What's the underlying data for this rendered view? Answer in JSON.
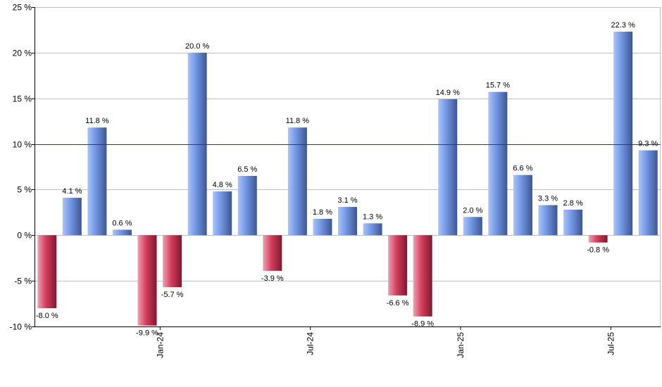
{
  "chart_data": {
    "type": "bar",
    "title": "",
    "xlabel": "",
    "ylabel": "",
    "ylim": [
      -10,
      25
    ],
    "y_ticks": [
      -10,
      -5,
      0,
      5,
      10,
      15,
      20,
      25
    ],
    "y_tick_labels": [
      "-10 %",
      "-5 %",
      "0 %",
      "5 %",
      "10 %",
      "15 %",
      "20 %",
      "25 %"
    ],
    "x_tick_labels": [
      {
        "label": "Jan-24",
        "after_index": 4
      },
      {
        "label": "Jul-24",
        "after_index": 10
      },
      {
        "label": "Jan-25",
        "after_index": 16
      },
      {
        "label": "Jul-25",
        "after_index": 22
      }
    ],
    "reference_line": {
      "value": 10,
      "color": "#006400"
    },
    "grid": true,
    "legend": "none",
    "colors": {
      "positive_light": "#a9c4ff",
      "positive_mid": "#6f93e0",
      "positive_dark": "#3f568f",
      "negative_light": "#f2a0b0",
      "negative_mid": "#d23c5c",
      "negative_dark": "#7d1a2f",
      "grid": "#c0c0c0",
      "axis": "#000000"
    },
    "values": [
      -8.0,
      4.1,
      11.8,
      0.6,
      -9.9,
      -5.7,
      20.0,
      4.8,
      6.5,
      -3.9,
      11.8,
      1.8,
      3.1,
      1.3,
      -6.6,
      -8.9,
      14.9,
      2.0,
      15.7,
      6.6,
      3.3,
      2.8,
      -0.8,
      22.3,
      9.3
    ],
    "data_labels": [
      "-8.0 %",
      "4.1 %",
      "11.8 %",
      "0.6 %",
      "-9.9 %",
      "-5.7 %",
      "20.0 %",
      "4.8 %",
      "6.5 %",
      "-3.9 %",
      "11.8 %",
      "1.8 %",
      "3.1 %",
      "1.3 %",
      "-6.6 %",
      "-8.9 %",
      "14.9 %",
      "2.0 %",
      "15.7 %",
      "6.6 %",
      "3.3 %",
      "2.8 %",
      "-0.8 %",
      "22.3 %",
      "9.3 %"
    ]
  }
}
